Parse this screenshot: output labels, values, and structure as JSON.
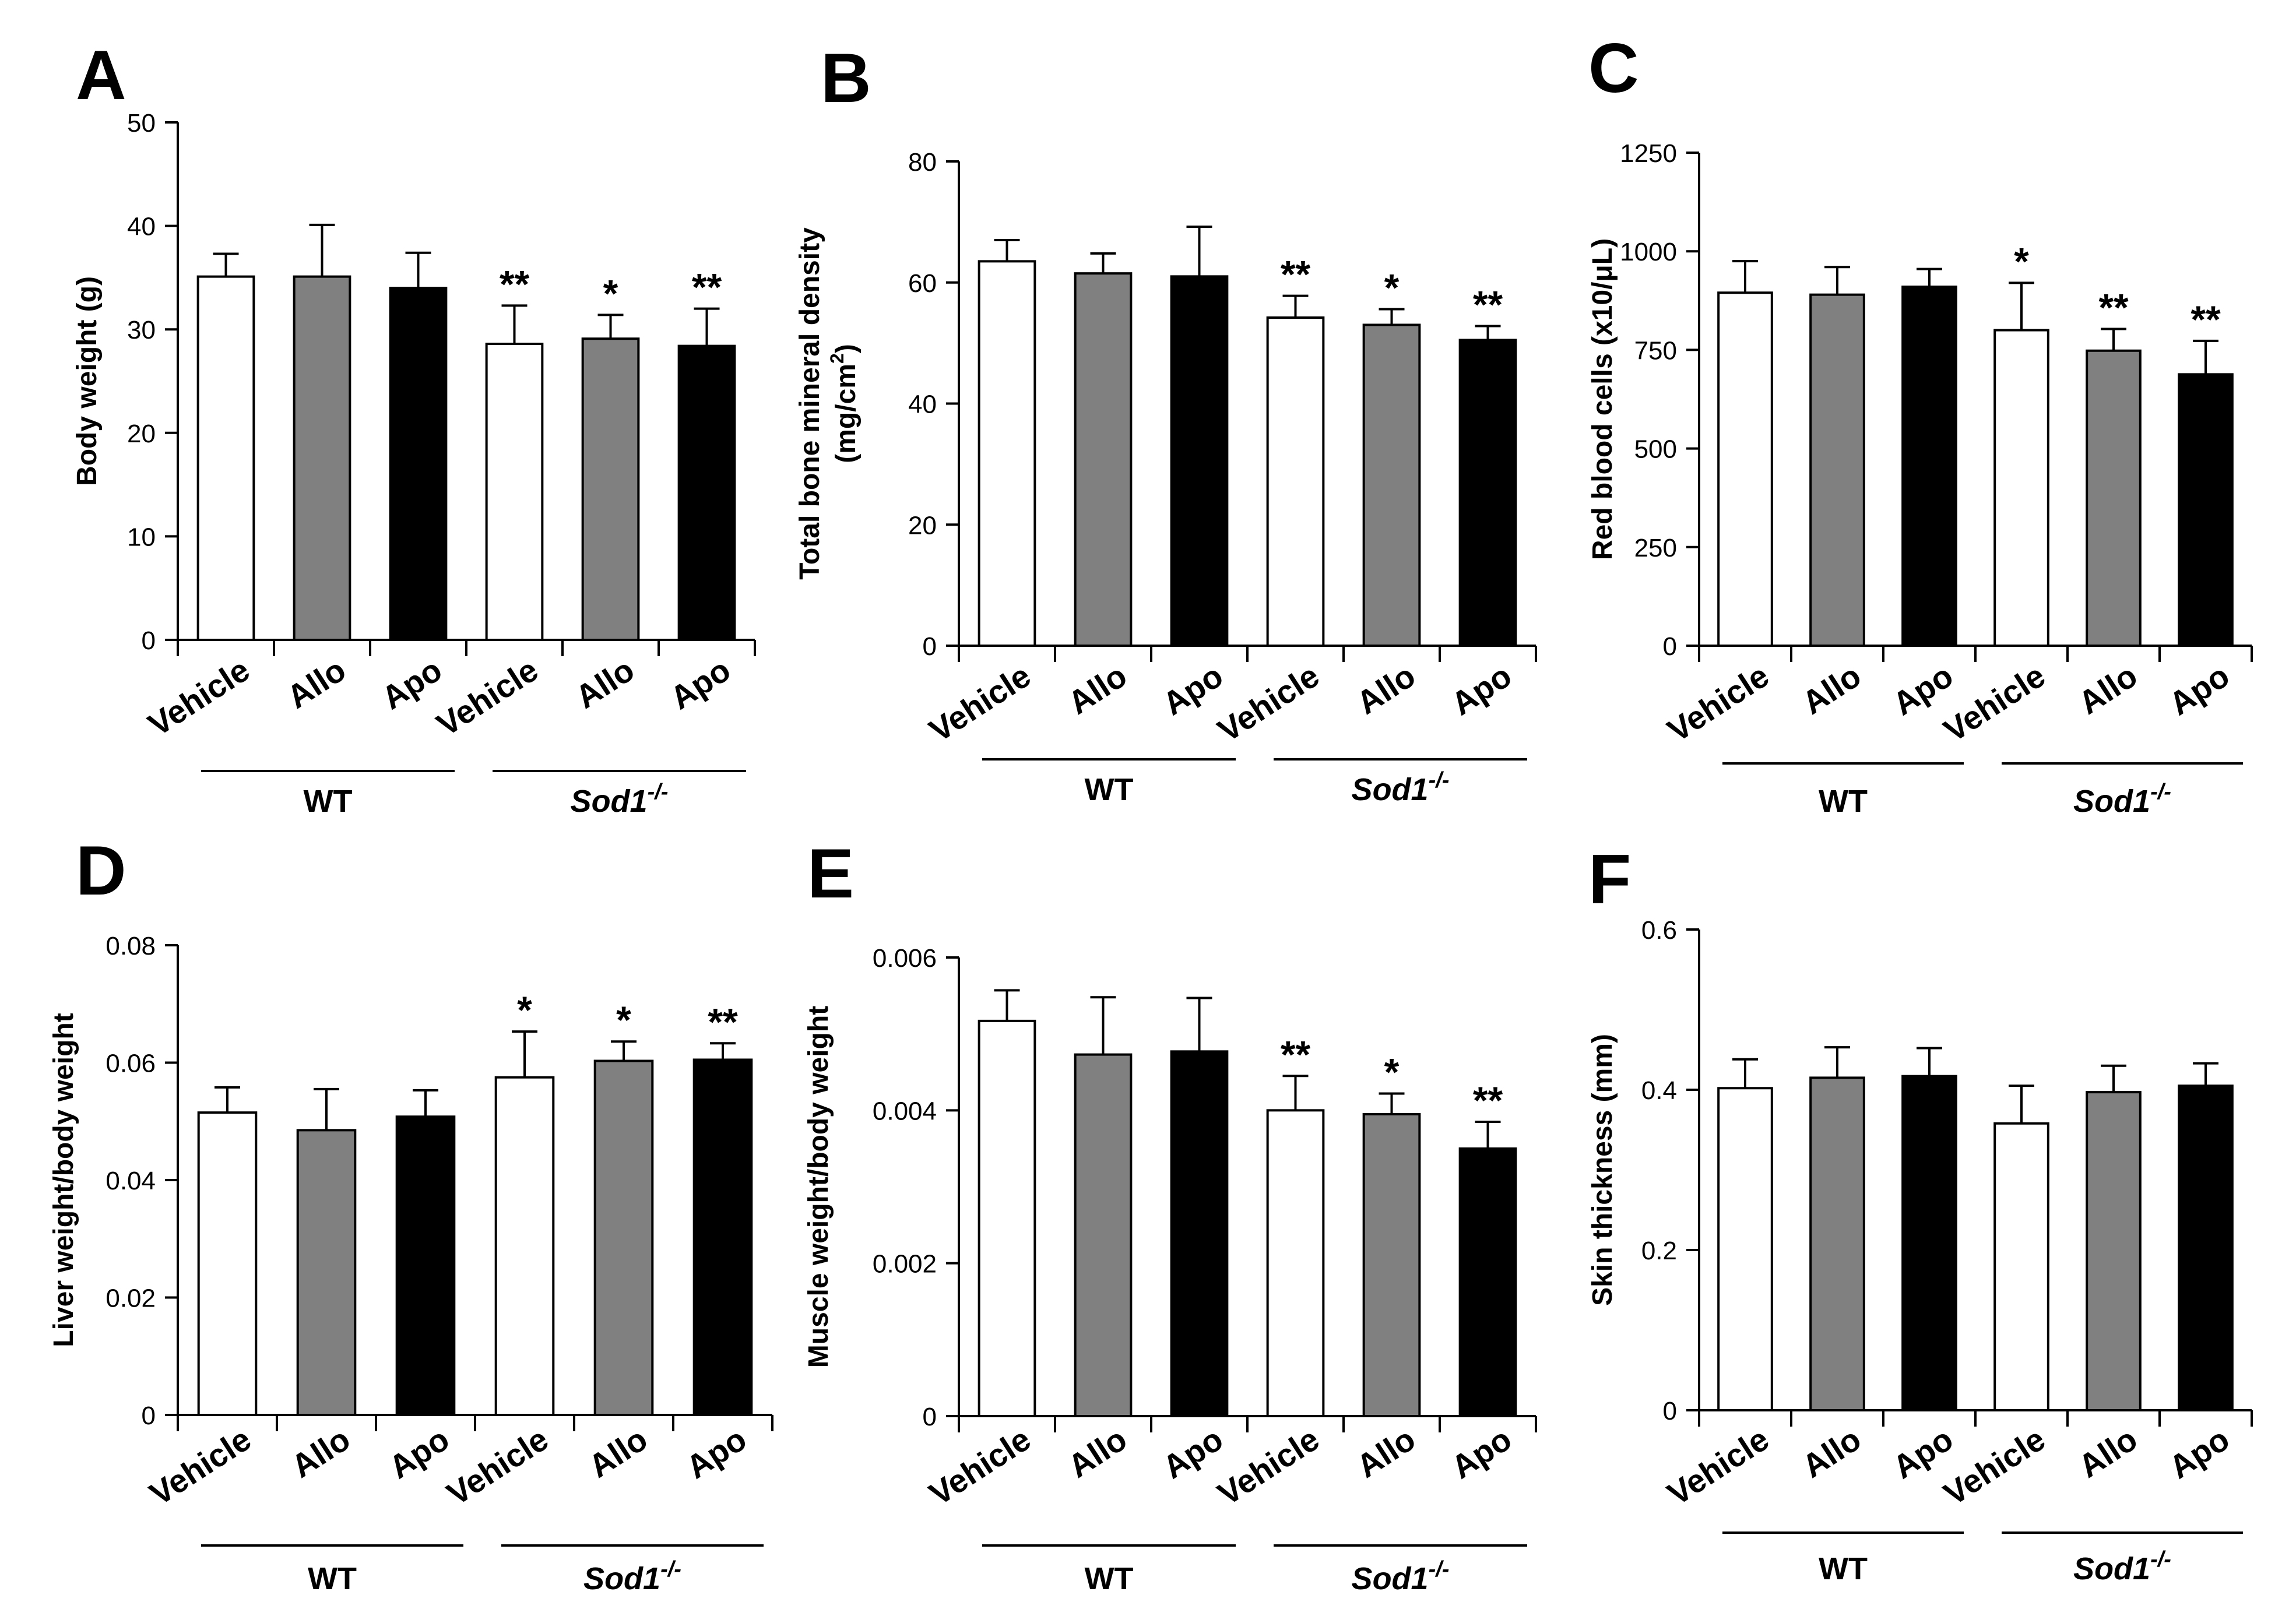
{
  "chart_data": [
    {
      "type": "bar",
      "panel": "A",
      "categories": [
        "Vehicle",
        "Allo",
        "Apo",
        "Vehicle",
        "Allo",
        "Apo"
      ],
      "groups": [
        {
          "label": "WT",
          "italic": false,
          "superscript": ""
        },
        {
          "label": "Sod1",
          "italic": true,
          "superscript": "-/-"
        }
      ],
      "values": [
        35.1,
        35.1,
        34.0,
        28.6,
        29.1,
        28.4
      ],
      "errors": [
        2.2,
        5.0,
        3.4,
        3.7,
        2.3,
        3.6
      ],
      "significance": [
        "",
        "",
        "",
        "**",
        "*",
        "**"
      ],
      "ylabel": "Body weight (g)",
      "ylabel_lines": [
        "Body weight (g)"
      ],
      "ylim": [
        0,
        50
      ],
      "yticks": [
        "0",
        "10",
        "20",
        "30",
        "40",
        "50"
      ],
      "colors": [
        "#ffffff",
        "#808080",
        "#000000",
        "#ffffff",
        "#808080",
        "#000000"
      ]
    },
    {
      "type": "bar",
      "panel": "B",
      "categories": [
        "Vehicle",
        "Allo",
        "Apo",
        "Vehicle",
        "Allo",
        "Apo"
      ],
      "groups": [
        {
          "label": "WT",
          "italic": false,
          "superscript": ""
        },
        {
          "label": "Sod1",
          "italic": true,
          "superscript": "-/-"
        }
      ],
      "values": [
        63.5,
        61.5,
        61.0,
        54.2,
        53.0,
        50.5
      ],
      "errors": [
        3.5,
        3.3,
        8.2,
        3.6,
        2.6,
        2.3
      ],
      "significance": [
        "",
        "",
        "",
        "**",
        "*",
        "**"
      ],
      "ylabel": "Total bone mineral density (mg/cm2)",
      "ylabel_lines": [
        "Total bone  mineral density",
        "(mg/cm",
        "2",
        ")"
      ],
      "ylim": [
        0,
        80
      ],
      "yticks": [
        "0",
        "20",
        "40",
        "60",
        "80"
      ],
      "colors": [
        "#ffffff",
        "#808080",
        "#000000",
        "#ffffff",
        "#808080",
        "#000000"
      ]
    },
    {
      "type": "bar",
      "panel": "C",
      "categories": [
        "Vehicle",
        "Allo",
        "Apo",
        "Vehicle",
        "Allo",
        "Apo"
      ],
      "groups": [
        {
          "label": "WT",
          "italic": false,
          "superscript": ""
        },
        {
          "label": "Sod1",
          "italic": true,
          "superscript": "-/-"
        }
      ],
      "values": [
        895,
        890,
        910,
        800,
        748,
        688
      ],
      "errors": [
        80,
        70,
        45,
        120,
        55,
        85
      ],
      "significance": [
        "",
        "",
        "",
        "*",
        "**",
        "**"
      ],
      "ylabel": "Red blood cells (x10/μL)",
      "ylabel_lines": [
        "Red blood cells (x10/",
        "μ",
        "L)"
      ],
      "ylim": [
        0,
        1250
      ],
      "yticks": [
        "0",
        "250",
        "500",
        "750",
        "1000",
        "1250"
      ],
      "colors": [
        "#ffffff",
        "#808080",
        "#000000",
        "#ffffff",
        "#808080",
        "#000000"
      ]
    },
    {
      "type": "bar",
      "panel": "D",
      "categories": [
        "Vehicle",
        "Allo",
        "Apo",
        "Vehicle",
        "Allo",
        "Apo"
      ],
      "groups": [
        {
          "label": "WT",
          "italic": false,
          "superscript": ""
        },
        {
          "label": "Sod1",
          "italic": true,
          "superscript": "-/-"
        }
      ],
      "values": [
        0.0515,
        0.0485,
        0.0508,
        0.0575,
        0.0603,
        0.0605
      ],
      "errors": [
        0.0043,
        0.007,
        0.0045,
        0.0078,
        0.0033,
        0.0028
      ],
      "significance": [
        "",
        "",
        "",
        "*",
        "*",
        "**"
      ],
      "ylabel": "Liver weight/body weight",
      "ylabel_lines": [
        "Liver weight/body weight"
      ],
      "ylim": [
        0,
        0.08
      ],
      "yticks": [
        "0",
        "0.02",
        "0.04",
        "0.06",
        "0.08"
      ],
      "colors": [
        "#ffffff",
        "#808080",
        "#000000",
        "#ffffff",
        "#808080",
        "#000000"
      ]
    },
    {
      "type": "bar",
      "panel": "E",
      "categories": [
        "Vehicle",
        "Allo",
        "Apo",
        "Vehicle",
        "Allo",
        "Apo"
      ],
      "groups": [
        {
          "label": "WT",
          "italic": false,
          "superscript": ""
        },
        {
          "label": "Sod1",
          "italic": true,
          "superscript": "-/-"
        }
      ],
      "values": [
        0.00517,
        0.00473,
        0.00477,
        0.004,
        0.00395,
        0.0035
      ],
      "errors": [
        0.0004,
        0.00075,
        0.0007,
        0.00045,
        0.00027,
        0.00035
      ],
      "significance": [
        "",
        "",
        "",
        "**",
        "*",
        "**"
      ],
      "ylabel": "Muscle weight/body weight",
      "ylabel_lines": [
        "Muscle weight/body weight"
      ],
      "ylim": [
        0,
        0.006
      ],
      "yticks": [
        "0",
        "0.002",
        "0.004",
        "0.006"
      ],
      "colors": [
        "#ffffff",
        "#808080",
        "#000000",
        "#ffffff",
        "#808080",
        "#000000"
      ]
    },
    {
      "type": "bar",
      "panel": "F",
      "categories": [
        "Vehicle",
        "Allo",
        "Apo",
        "Vehicle",
        "Allo",
        "Apo"
      ],
      "groups": [
        {
          "label": "WT",
          "italic": false,
          "superscript": ""
        },
        {
          "label": "Sod1",
          "italic": true,
          "superscript": "-/-"
        }
      ],
      "values": [
        0.402,
        0.415,
        0.417,
        0.358,
        0.397,
        0.405
      ],
      "errors": [
        0.036,
        0.038,
        0.035,
        0.047,
        0.033,
        0.028
      ],
      "significance": [
        "",
        "",
        "",
        "",
        "",
        ""
      ],
      "ylabel": "Skin thickness (mm)",
      "ylabel_lines": [
        "Skin thickness (mm)"
      ],
      "ylim": [
        0,
        0.6
      ],
      "yticks": [
        "0",
        "0.2",
        "0.4",
        "0.6"
      ],
      "colors": [
        "#ffffff",
        "#808080",
        "#000000",
        "#ffffff",
        "#808080",
        "#000000"
      ]
    }
  ]
}
